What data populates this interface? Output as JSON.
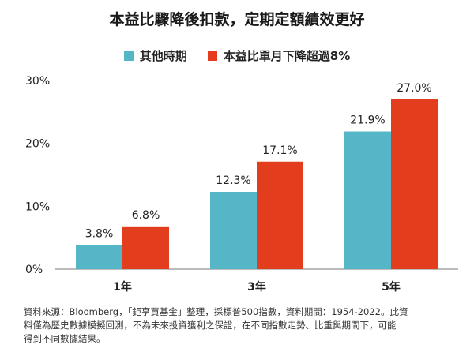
{
  "chart_data": {
    "type": "bar",
    "title": "本益比驟降後扣款，定期定額績效更好",
    "categories": [
      "1年",
      "3年",
      "5年"
    ],
    "series": [
      {
        "name": "其他時期",
        "values": [
          3.8,
          12.3,
          21.9
        ],
        "labels": [
          "3.8%",
          "12.3%",
          "21.9%"
        ],
        "color": "#55b6c8"
      },
      {
        "name": "本益比單月下降超過8%",
        "values": [
          6.8,
          17.1,
          27.0
        ],
        "labels": [
          "6.8%",
          "17.1%",
          "27.0%"
        ],
        "color": "#e23d1d"
      }
    ],
    "yticks": [
      {
        "value": 0,
        "label": "0%"
      },
      {
        "value": 10,
        "label": "10%"
      },
      {
        "value": 20,
        "label": "20%"
      },
      {
        "value": 30,
        "label": "30%"
      }
    ],
    "ylim": [
      0,
      30
    ],
    "grid": false,
    "legend_position": "top-center"
  },
  "source_lines": [
    "資料來源：Bloomberg，「鉅亨買基金」整理，採標普500指數，資料期間：1954-2022。此資",
    "料僅為歷史數據模擬回測，不為未來投資獲利之保證，在不同指數走勢、比重與期間下，可能",
    "得到不同數據結果。"
  ]
}
